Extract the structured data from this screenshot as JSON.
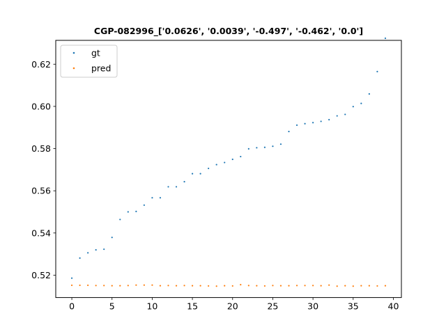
{
  "chart_data": {
    "type": "scatter",
    "title": "CGP-082996_['0.0626', '0.0039', '-0.497', '-0.462', '0.0']",
    "xlabel": "",
    "ylabel": "",
    "xlim": [
      -2,
      41
    ],
    "ylim": [
      0.5094,
      0.6313
    ],
    "xticks": [
      0,
      5,
      10,
      15,
      20,
      25,
      30,
      35,
      40
    ],
    "xtick_labels": [
      "0",
      "5",
      "10",
      "15",
      "20",
      "25",
      "30",
      "35",
      "40"
    ],
    "yticks": [
      0.52,
      0.54,
      0.56,
      0.58,
      0.6,
      0.62
    ],
    "ytick_labels": [
      "0.52",
      "0.54",
      "0.56",
      "0.58",
      "0.60",
      "0.62"
    ],
    "grid": false,
    "legend_location": "top-left",
    "x": [
      0,
      1,
      2,
      3,
      4,
      5,
      6,
      7,
      8,
      9,
      10,
      11,
      12,
      13,
      14,
      15,
      16,
      17,
      18,
      19,
      20,
      21,
      22,
      23,
      24,
      25,
      26,
      27,
      28,
      29,
      30,
      31,
      32,
      33,
      34,
      35,
      36,
      37,
      38,
      39
    ],
    "series": [
      {
        "name": "gt",
        "color": "#1f77b4",
        "values": [
          0.5186,
          0.5281,
          0.5306,
          0.532,
          0.5323,
          0.5379,
          0.5464,
          0.55,
          0.5502,
          0.5532,
          0.5567,
          0.5567,
          0.5619,
          0.5619,
          0.5643,
          0.5681,
          0.5681,
          0.5706,
          0.5724,
          0.5734,
          0.5749,
          0.5762,
          0.5799,
          0.5804,
          0.5806,
          0.5811,
          0.5821,
          0.5881,
          0.5911,
          0.5918,
          0.5923,
          0.5929,
          0.5937,
          0.5955,
          0.5962,
          0.5999,
          0.6014,
          0.6059,
          0.6165,
          0.6323
        ]
      },
      {
        "name": "pred",
        "color": "#ff7f0e",
        "values": [
          0.5152,
          0.5152,
          0.5152,
          0.5151,
          0.5151,
          0.515,
          0.515,
          0.5151,
          0.5153,
          0.5153,
          0.5153,
          0.515,
          0.5151,
          0.515,
          0.5151,
          0.515,
          0.515,
          0.5149,
          0.5148,
          0.515,
          0.5149,
          0.5155,
          0.5151,
          0.515,
          0.5149,
          0.5151,
          0.515,
          0.515,
          0.5151,
          0.5151,
          0.5151,
          0.515,
          0.5153,
          0.5148,
          0.515,
          0.5148,
          0.515,
          0.515,
          0.5149,
          0.515
        ]
      }
    ]
  }
}
